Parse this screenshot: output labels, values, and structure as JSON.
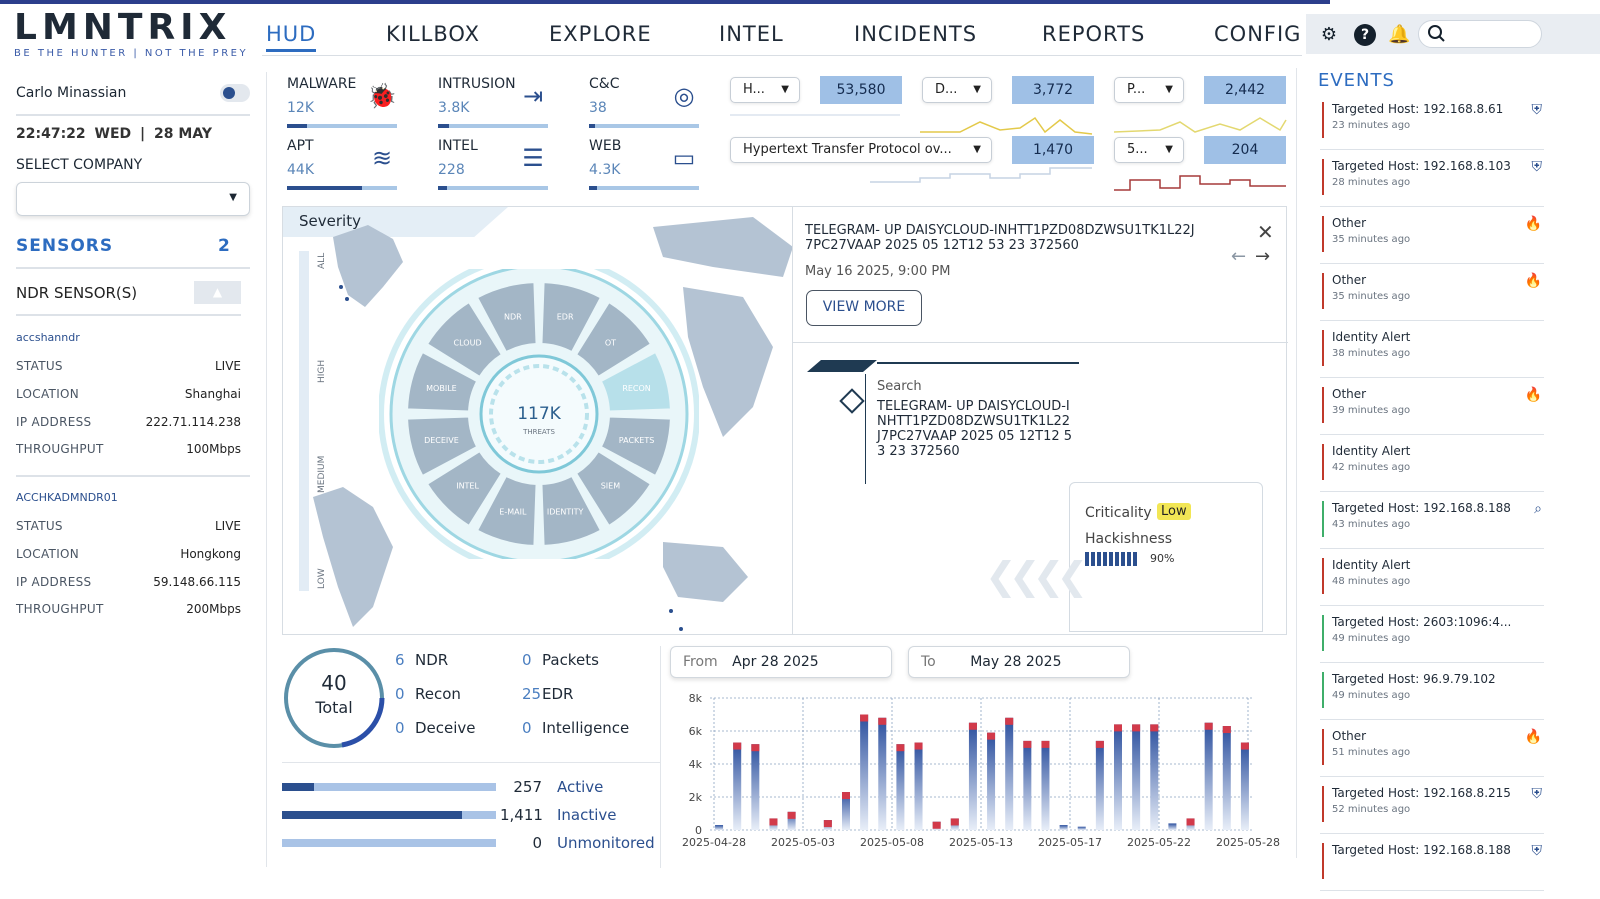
{
  "brand": {
    "logo": "LMNTRIX",
    "tagline": "BE THE HUNTER  |  NOT THE PREY"
  },
  "nav": [
    {
      "label": "HUD",
      "active": true
    },
    {
      "label": "KILLBOX"
    },
    {
      "label": "EXPLORE"
    },
    {
      "label": "INTEL"
    },
    {
      "label": "INCIDENTS"
    },
    {
      "label": "REPORTS"
    },
    {
      "label": "CONFIG"
    }
  ],
  "toolbar": {
    "icons": [
      "gear-icon",
      "help-icon",
      "bell-icon",
      "search-icon"
    ]
  },
  "user": {
    "name": "Carlo Minassian",
    "time": "22:47:22",
    "day": "WED",
    "date": "28 MAY"
  },
  "company": {
    "label": "SELECT COMPANY",
    "value": ""
  },
  "sensors": {
    "title": "SENSORS",
    "count": "2",
    "group_label": "NDR SENSOR(S)",
    "items": [
      {
        "name": "accshanndr",
        "status": "LIVE",
        "location": "Shanghai",
        "ip": "222.71.114.238",
        "throughput": "100Mbps"
      },
      {
        "name": "ACCHKADMNDR01",
        "status": "LIVE",
        "location": "Hongkong",
        "ip": "59.148.66.115",
        "throughput": "200Mbps"
      }
    ],
    "labels": {
      "status": "STATUS",
      "location": "LOCATION",
      "ip": "IP ADDRESS",
      "throughput": "THROUGHPUT"
    }
  },
  "stats": [
    {
      "title": "MALWARE",
      "value": "12K",
      "icon": "bug-icon",
      "fill": 0.18
    },
    {
      "title": "INTRUSION",
      "value": "3.8K",
      "icon": "login-icon",
      "fill": 0.1
    },
    {
      "title": "C&C",
      "value": "38",
      "icon": "signal-icon",
      "fill": 0.05
    },
    {
      "title": "APT",
      "value": "44K",
      "icon": "layers-icon",
      "fill": 0.68
    },
    {
      "title": "INTEL",
      "value": "228",
      "icon": "menu-icon",
      "fill": 0.08
    },
    {
      "title": "WEB",
      "value": "4.3K",
      "icon": "monitor-icon",
      "fill": 0.07
    }
  ],
  "filters": [
    {
      "label": "H...",
      "value": "53,580"
    },
    {
      "label": "D...",
      "value": "3,772"
    },
    {
      "label": "P...",
      "value": "2,442"
    },
    {
      "label": "Hypertext Transfer Protocol ov...",
      "value": "1,470"
    },
    {
      "label": "5...",
      "value": "204"
    }
  ],
  "severity": {
    "title": "Severity",
    "levels": [
      "ALL",
      "HIGH",
      "MEDIUM",
      "LOW"
    ]
  },
  "wheel": {
    "total": "117K",
    "sub": "THREATS",
    "segments": [
      "EDR",
      "OT",
      "RECON",
      "PACKETS",
      "SIEM",
      "IDENTITY",
      "E-MAIL",
      "INTEL",
      "DECEIVE",
      "MOBILE",
      "CLOUD",
      "NDR"
    ]
  },
  "detail": {
    "title": "TELEGRAM- UP DAISYCLOUD-INHTT1PZD08DZWSU1TK1L22J 7PC27VAAP 2025 05 12T12 53 23 372560",
    "date": "May 16 2025, 9:00 PM",
    "view_more": "VIEW MORE",
    "search_label": "Search",
    "search_text": "TELEGRAM- UP DAISYCLOUD-INHTT1PZD08DZWSU1TK1L22 J7PC27VAAP 2025 05 12T12 53 23 372560",
    "criticality_label": "Criticality",
    "criticality": "Low",
    "hackishness_label": "Hackishness",
    "hackishness": "90%"
  },
  "events": {
    "title": "EVENTS",
    "items": [
      {
        "title": "Targeted Host: 192.168.8.61",
        "time": "23 minutes ago",
        "color": "#c0392b",
        "icon": "shield-icon"
      },
      {
        "title": "Targeted Host: 192.168.8.103",
        "time": "28 minutes ago",
        "color": "#c0392b",
        "icon": "shield-icon"
      },
      {
        "title": "Other",
        "time": "35 minutes ago",
        "color": "#c0392b",
        "icon": "fire-icon"
      },
      {
        "title": "Other",
        "time": "35 minutes ago",
        "color": "#c0392b",
        "icon": "fire-icon"
      },
      {
        "title": "Identity Alert",
        "time": "38 minutes ago",
        "color": "#c0392b",
        "icon": ""
      },
      {
        "title": "Other",
        "time": "39 minutes ago",
        "color": "#c0392b",
        "icon": "fire-icon"
      },
      {
        "title": "Identity Alert",
        "time": "42 minutes ago",
        "color": "#c0392b",
        "icon": ""
      },
      {
        "title": "Targeted Host: 192.168.8.188",
        "time": "43 minutes ago",
        "color": "#3fae6a",
        "icon": "zoom-icon"
      },
      {
        "title": "Identity Alert",
        "time": "48 minutes ago",
        "color": "#c0392b",
        "icon": ""
      },
      {
        "title": "Targeted Host: 2603:1096:4...",
        "time": "49 minutes ago",
        "color": "#3fae6a",
        "icon": ""
      },
      {
        "title": "Targeted Host: 96.9.79.102",
        "time": "49 minutes ago",
        "color": "#3fae6a",
        "icon": ""
      },
      {
        "title": "Other",
        "time": "51 minutes ago",
        "color": "#c0392b",
        "icon": "fire-icon"
      },
      {
        "title": "Targeted Host: 192.168.8.215",
        "time": "52 minutes ago",
        "color": "#c0392b",
        "icon": "shield-icon"
      },
      {
        "title": "Targeted Host: 192.168.8.188",
        "time": "",
        "color": "#c0392b",
        "icon": "shield-icon"
      }
    ]
  },
  "summary": {
    "total": "40",
    "total_label": "Total",
    "legend": [
      {
        "n": "6",
        "t": "NDR"
      },
      {
        "n": "0",
        "t": "Recon"
      },
      {
        "n": "0",
        "t": "Deceive"
      },
      {
        "n": "0",
        "t": "Packets"
      },
      {
        "n": "25",
        "t": "EDR"
      },
      {
        "n": "0",
        "t": "Intelligence"
      }
    ],
    "bars": [
      {
        "n": "257",
        "t": "Active",
        "fill": 0.15
      },
      {
        "n": "1,411",
        "t": "Inactive",
        "fill": 0.84
      },
      {
        "n": "0",
        "t": "Unmonitored",
        "fill": 0
      }
    ]
  },
  "range": {
    "from_label": "From",
    "from": "Apr 28 2025",
    "to_label": "To",
    "to": "May 28 2025"
  },
  "chart_data": {
    "type": "bar",
    "ylim": [
      0,
      8000
    ],
    "yticks": [
      "0",
      "2k",
      "4k",
      "6k",
      "8k"
    ],
    "xticks": [
      "2025-04-28",
      "2025-05-03",
      "2025-05-08",
      "2025-05-13",
      "2025-05-17",
      "2025-05-22",
      "2025-05-28"
    ],
    "values": [
      300,
      5300,
      5200,
      700,
      1100,
      0,
      600,
      2300,
      7000,
      6800,
      5200,
      5300,
      500,
      700,
      6500,
      5900,
      6800,
      5400,
      5400,
      300,
      200,
      5400,
      6400,
      6400,
      6400,
      400,
      700,
      6500,
      6300,
      5300
    ]
  }
}
